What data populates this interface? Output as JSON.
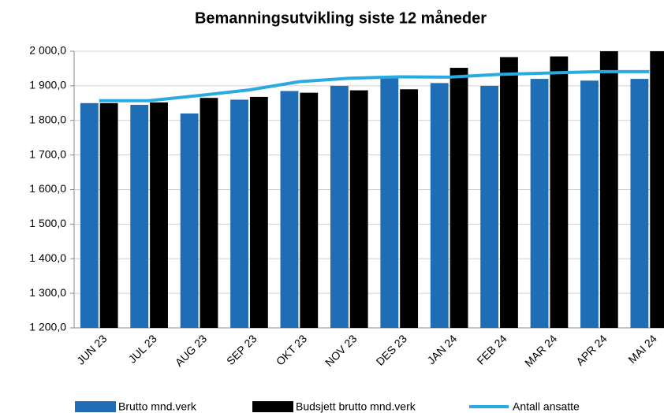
{
  "chart_data": {
    "type": "bar_line",
    "title": "Bemanningsutvikling siste 12 måneder",
    "categories": [
      "JUN 23",
      "JUL 23",
      "AUG 23",
      "SEP 23",
      "OKT 23",
      "NOV 23",
      "DES 23",
      "JAN 24",
      "FEB 24",
      "MAR 24",
      "APR 24",
      "MAI 24"
    ],
    "series": [
      {
        "name": "Brutto mnd.verk",
        "type": "bar",
        "color": "#1f6db5",
        "values": [
          1850,
          1845,
          1820,
          1860,
          1885,
          1900,
          1925,
          1908,
          1900,
          1920,
          1915,
          1920
        ]
      },
      {
        "name": "Budsjett brutto mnd.verk",
        "type": "bar",
        "color": "#000000",
        "values": [
          1850,
          1852,
          1865,
          1868,
          1880,
          1887,
          1890,
          1952,
          1983,
          1985,
          2000,
          2000
        ]
      },
      {
        "name": "Antall ansatte",
        "type": "line",
        "color": "#29abe2",
        "values": [
          1857,
          1857,
          1872,
          1888,
          1912,
          1922,
          1926,
          1925,
          1933,
          1937,
          1941,
          1941
        ]
      }
    ],
    "ylim": [
      1200,
      2000
    ],
    "yticks": [
      {
        "value": 1200,
        "label": "1 200,0"
      },
      {
        "value": 1300,
        "label": "1 300,0"
      },
      {
        "value": 1400,
        "label": "1 400,0"
      },
      {
        "value": 1500,
        "label": "1 500,0"
      },
      {
        "value": 1600,
        "label": "1 600,0"
      },
      {
        "value": 1700,
        "label": "1 700,0"
      },
      {
        "value": 1800,
        "label": "1 800,0"
      },
      {
        "value": 1900,
        "label": "1 900,0"
      },
      {
        "value": 2000,
        "label": "2 000,0"
      }
    ],
    "grid": true,
    "legend": "bottom"
  }
}
